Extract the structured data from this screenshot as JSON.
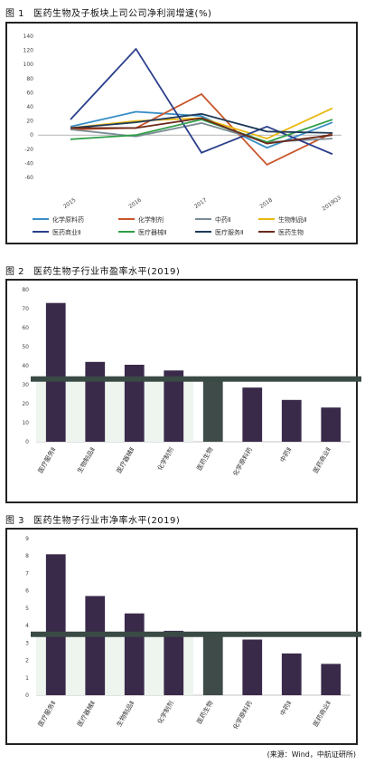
{
  "figures": {
    "fig1": {
      "num": "图 1",
      "title": "医药生物及子板块上司公司净利润增速(%)"
    },
    "fig2": {
      "num": "图 2",
      "title": "医药生物子行业市盈率水平(2019)"
    },
    "fig3": {
      "num": "图 3",
      "title": "医药生物子行业市净率水平(2019)"
    }
  },
  "source": "(来源：Wind，中航证研所)",
  "chart_data": [
    {
      "type": "line",
      "title": "医药生物及子板块上司公司净利润增速(%)",
      "x": [
        "2015",
        "2016",
        "2017",
        "2018",
        "2019Q3"
      ],
      "ylim": [
        -60,
        140
      ],
      "yticks": [
        140,
        120,
        100,
        80,
        60,
        40,
        20,
        0,
        -20,
        -40,
        -60
      ],
      "grid": false,
      "legend_position": "bottom",
      "series": [
        {
          "name": "化学原料药",
          "color": "#3a8fc6",
          "values": [
            12,
            33,
            27,
            -18,
            18
          ]
        },
        {
          "name": "化学制剂",
          "color": "#c8552a",
          "values": [
            8,
            10,
            58,
            -42,
            3
          ]
        },
        {
          "name": "中药Ⅱ",
          "color": "#7a8c96",
          "values": [
            8,
            -2,
            17,
            -10,
            -5
          ]
        },
        {
          "name": "生物制品Ⅱ",
          "color": "#e9b80f",
          "values": [
            10,
            20,
            24,
            -5,
            38
          ]
        },
        {
          "name": "医药商业Ⅱ",
          "color": "#2b3f8c",
          "values": [
            22,
            122,
            -25,
            12,
            -27
          ]
        },
        {
          "name": "医疗器械Ⅱ",
          "color": "#2e9e47",
          "values": [
            -6,
            0,
            22,
            -10,
            22
          ]
        },
        {
          "name": "医疗服务Ⅱ",
          "color": "#1f3a5a",
          "values": [
            10,
            18,
            30,
            5,
            3
          ]
        },
        {
          "name": "医药生物",
          "color": "#6b2a1c",
          "values": [
            10,
            10,
            24,
            -12,
            0
          ]
        }
      ]
    },
    {
      "type": "bar",
      "title": "医药生物子行业市盈率水平(2019)",
      "categories": [
        "医疗服务Ⅱ",
        "生物制品Ⅱ",
        "医疗器械Ⅱ",
        "化学制剂",
        "医药生物",
        "化学原料药",
        "中药Ⅱ",
        "医药商业Ⅱ"
      ],
      "values": [
        73,
        42,
        40.5,
        37.5,
        33,
        28.5,
        22,
        18
      ],
      "reference_value": 33,
      "ylim": [
        0,
        80
      ],
      "yticks": [
        0,
        10,
        20,
        30,
        40,
        50,
        60,
        70,
        80
      ],
      "bar_color": "#3a2a4a",
      "highlight_color": "#3f4b48",
      "highlight_index": 4
    },
    {
      "type": "bar",
      "title": "医药生物子行业市净率水平(2019)",
      "categories": [
        "医疗服务Ⅱ",
        "医疗器械Ⅱ",
        "生物制品Ⅱ",
        "化学制剂",
        "医药生物",
        "化学原料药",
        "中药Ⅱ",
        "医药商业Ⅱ"
      ],
      "values": [
        8.1,
        5.7,
        4.7,
        3.7,
        3.5,
        3.2,
        2.4,
        1.8
      ],
      "reference_value": 3.5,
      "ylim": [
        0,
        9
      ],
      "yticks": [
        0,
        1,
        2,
        3,
        4,
        5,
        6,
        7,
        8,
        9
      ],
      "bar_color": "#3a2a4a",
      "highlight_color": "#3f4b48",
      "highlight_index": 4
    }
  ]
}
